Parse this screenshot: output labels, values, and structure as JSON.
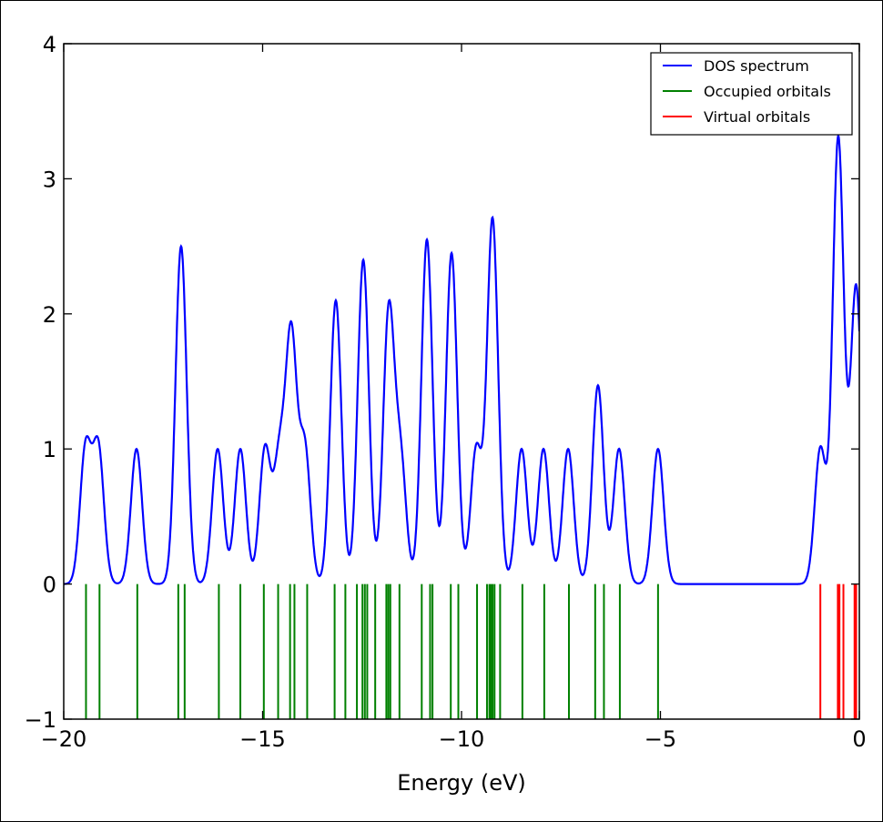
{
  "chart_data": {
    "type": "line",
    "title": "",
    "xlabel": "Energy (eV)",
    "ylabel": "",
    "xlim": [
      -20,
      0
    ],
    "ylim": [
      -1,
      4
    ],
    "xticks": [
      -20,
      -15,
      -10,
      -5,
      0
    ],
    "xtick_labels": [
      "−20",
      "−15",
      "−10",
      "−5",
      "0"
    ],
    "yticks": [
      -1,
      0,
      1,
      2,
      3,
      4
    ],
    "ytick_labels": [
      "−1",
      "0",
      "1",
      "2",
      "3",
      "4"
    ],
    "grid": false,
    "legend_position": "top-right",
    "series": [
      {
        "name": "DOS spectrum",
        "color": "#0000ff",
        "kind": "curve",
        "peaks": [
          [
            -19.45,
            1.0
          ],
          [
            -19.13,
            1.0
          ],
          [
            -18.17,
            1.0
          ],
          [
            -17.05,
            2.5
          ],
          [
            -16.13,
            1.0
          ],
          [
            -15.56,
            1.0
          ],
          [
            -14.94,
            1.0
          ],
          [
            -14.58,
            0.9
          ],
          [
            -14.28,
            1.8
          ],
          [
            -13.94,
            1.0
          ],
          [
            -13.16,
            2.1
          ],
          [
            -12.47,
            2.4
          ],
          [
            -11.83,
            2.0
          ],
          [
            -11.53,
            0.9
          ],
          [
            -10.87,
            2.55
          ],
          [
            -10.25,
            2.45
          ],
          [
            -9.63,
            1.0
          ],
          [
            -9.22,
            2.7
          ],
          [
            -8.49,
            1.0
          ],
          [
            -7.94,
            1.0
          ],
          [
            -7.32,
            1.0
          ],
          [
            -6.57,
            1.47
          ],
          [
            -6.04,
            1.0
          ],
          [
            -5.06,
            1.0
          ],
          [
            -0.98,
            1.0
          ],
          [
            -0.53,
            3.3
          ],
          [
            -0.08,
            2.2
          ]
        ]
      },
      {
        "name": "Occupied orbitals",
        "color": "#008000",
        "kind": "sticks",
        "stick_range": [
          -1,
          0
        ],
        "x": [
          -19.44,
          -19.1,
          -18.15,
          -17.12,
          -16.96,
          -16.1,
          -15.56,
          -14.97,
          -14.61,
          -14.31,
          -14.2,
          -13.88,
          -13.19,
          -12.92,
          -12.63,
          -12.49,
          -12.43,
          -12.37,
          -12.17,
          -11.89,
          -11.84,
          -11.79,
          -11.56,
          -11.0,
          -10.79,
          -10.73,
          -10.27,
          -10.08,
          -9.61,
          -9.36,
          -9.3,
          -9.26,
          -9.22,
          -9.17,
          -9.03,
          -8.47,
          -7.92,
          -7.3,
          -6.64,
          -6.42,
          -6.02,
          -5.06
        ]
      },
      {
        "name": "Virtual orbitals",
        "color": "#ff0000",
        "kind": "sticks",
        "stick_range": [
          -1,
          0
        ],
        "x": [
          -0.98,
          -0.54,
          -0.5,
          -0.4,
          -0.12,
          -0.08
        ]
      }
    ]
  }
}
